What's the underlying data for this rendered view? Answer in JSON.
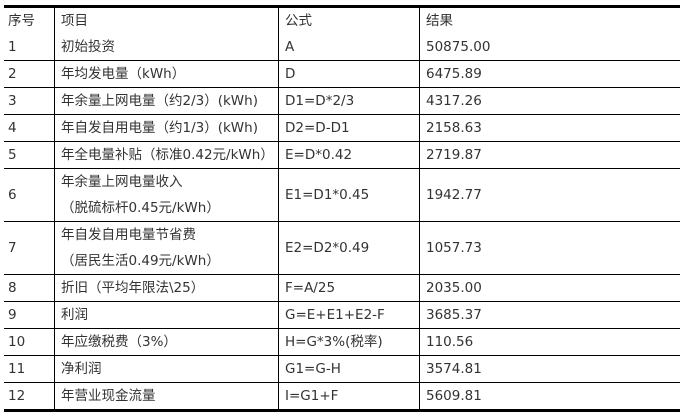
{
  "headers": [
    "序号",
    "项目",
    "公式",
    "结果"
  ],
  "rows": [
    {
      "no": "1",
      "item": [
        "初始投资"
      ],
      "formula": "A",
      "result": "50875.00"
    },
    {
      "no": "2",
      "item": [
        "年均发电量（kWh）"
      ],
      "formula": "D",
      "result": "6475.89"
    },
    {
      "no": "3",
      "item": [
        "年余量上网电量（约2/3）(kWh)"
      ],
      "formula": "D1=D*2/3",
      "result": "4317.26"
    },
    {
      "no": "4",
      "item": [
        "年自发自用电量（约1/3）(kWh)"
      ],
      "formula": "D2=D-D1",
      "result": "2158.63"
    },
    {
      "no": "5",
      "item": [
        "年全电量补贴（标准0.42元/kWh）"
      ],
      "formula": "E=D*0.42",
      "result": "2719.87"
    },
    {
      "no": "6",
      "item": [
        "年余量上网电量收入",
        "（脱硫标杆0.45元/kWh）"
      ],
      "formula": "E1=D1*0.45",
      "result": "1942.77"
    },
    {
      "no": "7",
      "item": [
        "年自发自用电量节省费",
        "（居民生活0.49元/kWh）"
      ],
      "formula": "E2=D2*0.49",
      "result": "1057.73"
    },
    {
      "no": "8",
      "item": [
        "折旧（平均年限法\\25）"
      ],
      "formula": "F=A/25",
      "result": "2035.00"
    },
    {
      "no": "9",
      "item": [
        "利润"
      ],
      "formula": "G=E+E1+E2-F",
      "result": "3685.37"
    },
    {
      "no": "10",
      "item": [
        "年应缴税费（3%）"
      ],
      "formula": "H=G*3%(税率)",
      "result": "110.56"
    },
    {
      "no": "11",
      "item": [
        "净利润"
      ],
      "formula": "G1=G-H",
      "result": "3574.81"
    },
    {
      "no": "12",
      "item": [
        "年营业现金流量"
      ],
      "formula": "I=G1+F",
      "result": "5609.81"
    }
  ]
}
